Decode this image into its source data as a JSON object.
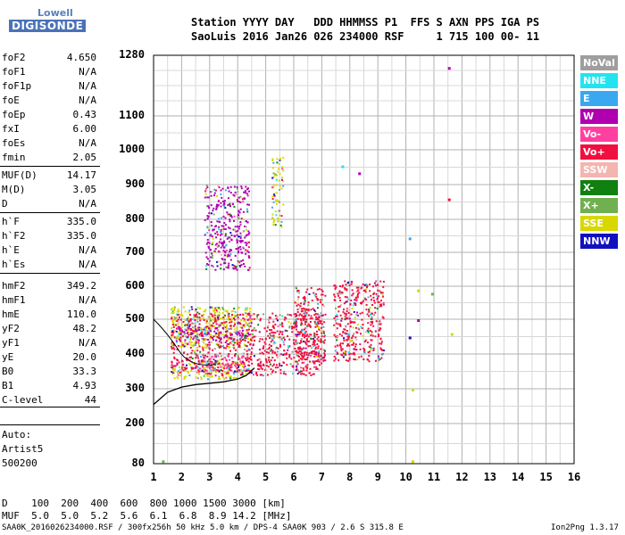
{
  "logo": {
    "line1": "Lowell",
    "line2": "DIGISONDE"
  },
  "header": {
    "line1": "Station YYYY DAY   DDD HHMMSS P1  FFS S AXN PPS IGA PS",
    "line2": "SaoLuis 2016 Jan26 026 234000 RSF     1 715 100 00- 11"
  },
  "params": [
    {
      "name": "foF2",
      "value": "4.650"
    },
    {
      "name": "foF1",
      "value": "N/A"
    },
    {
      "name": "foF1p",
      "value": "N/A"
    },
    {
      "name": "foE",
      "value": "N/A"
    },
    {
      "name": "foEp",
      "value": "0.43"
    },
    {
      "name": "fxI",
      "value": "6.00"
    },
    {
      "name": "foEs",
      "value": "N/A"
    },
    {
      "name": "fmin",
      "value": "2.05"
    },
    {
      "name": "MUF(D)",
      "value": "14.17"
    },
    {
      "name": "M(D)",
      "value": "3.05"
    },
    {
      "name": "D",
      "value": "N/A"
    },
    {
      "name": "h`F",
      "value": "335.0"
    },
    {
      "name": "h`F2",
      "value": "335.0"
    },
    {
      "name": "h`E",
      "value": "N/A"
    },
    {
      "name": "h`Es",
      "value": "N/A"
    },
    {
      "name": "hmF2",
      "value": "349.2"
    },
    {
      "name": "hmF1",
      "value": "N/A"
    },
    {
      "name": "hmE",
      "value": "110.0"
    },
    {
      "name": "yF2",
      "value": "48.2"
    },
    {
      "name": "yF1",
      "value": "N/A"
    },
    {
      "name": "yE",
      "value": "20.0"
    },
    {
      "name": "B0",
      "value": "33.3"
    },
    {
      "name": "B1",
      "value": "4.93"
    },
    {
      "name": "C-level",
      "value": "44"
    }
  ],
  "auto": {
    "line1": "Auto:",
    "line2": "Artist5",
    "line3": "500200"
  },
  "legend": [
    {
      "label": "NoVal",
      "color": "#9e9e9e"
    },
    {
      "label": "NNE",
      "color": "#22e4f0"
    },
    {
      "label": "E",
      "color": "#3aa8f0"
    },
    {
      "label": "W",
      "color": "#b000b0"
    },
    {
      "label": "Vo-",
      "color": "#ff40a0"
    },
    {
      "label": "Vo+",
      "color": "#f01040"
    },
    {
      "label": "SSW",
      "color": "#f4b4b0"
    },
    {
      "label": "X-",
      "color": "#108010"
    },
    {
      "label": "X+",
      "color": "#70b050"
    },
    {
      "label": "SSE",
      "color": "#d8d800"
    },
    {
      "label": "NNW",
      "color": "#1010c0"
    }
  ],
  "footer": {
    "line1": "D    100  200  400  600  800 1000 1500 3000 [km]",
    "line2": "MUF  5.0  5.0  5.2  5.6  6.1  6.8  8.9 14.2 [MHz]",
    "line3": "SAA0K_2016026234000.RSF / 300fx256h 50 kHz 5.0 km / DPS-4 SAA0K 903 / 2.6 S 315.8 E",
    "version": "Ion2Png 1.3.17"
  },
  "chart_data": {
    "type": "scatter",
    "title": "",
    "xlabel": "",
    "ylabel": "",
    "xlim": [
      1,
      16
    ],
    "ylim": [
      80,
      1280
    ],
    "x_ticks": [
      "1",
      "2",
      "3",
      "4",
      "5",
      "6",
      "7",
      "8",
      "9",
      "10",
      "11",
      "12",
      "13",
      "14",
      "15",
      "16"
    ],
    "y_ticks": [
      "80",
      "200",
      "300",
      "400",
      "500",
      "600",
      "700",
      "800",
      "900",
      "1000",
      "1100",
      "1280"
    ],
    "y_tick_values": [
      80,
      200,
      300,
      400,
      500,
      600,
      700,
      800,
      900,
      1000,
      1100,
      1280
    ],
    "y_scale": "nonlinear",
    "grid": true,
    "trace_description": "F-region echo clusters (MHz vs km)",
    "clusters": [
      {
        "x": [
          1.6,
          4.5
        ],
        "y": [
          420,
          540
        ],
        "color": "#d8d800"
      },
      {
        "x": [
          1.6,
          4.3
        ],
        "y": [
          330,
          380
        ],
        "color": "#d8d800"
      },
      {
        "x": [
          1.6,
          7.0
        ],
        "y": [
          340,
          520
        ],
        "color": "#f01040"
      },
      {
        "x": [
          1.7,
          4.4
        ],
        "y": [
          440,
          480
        ],
        "color": "#b000b0"
      },
      {
        "x": [
          2.5,
          4.2
        ],
        "y": [
          350,
          400
        ],
        "color": "#ff40a0"
      },
      {
        "x": [
          6.0,
          7.1
        ],
        "y": [
          380,
          600
        ],
        "color": "#f01040"
      },
      {
        "x": [
          7.4,
          9.2
        ],
        "y": [
          380,
          620
        ],
        "color": "#f01040"
      },
      {
        "x": [
          2.8,
          4.4
        ],
        "y": [
          650,
          900
        ],
        "color": "#b000b0"
      },
      {
        "x": [
          5.2,
          5.6
        ],
        "y": [
          780,
          980
        ],
        "color": "#d8d800"
      }
    ],
    "profile_curve": {
      "x": [
        1.0,
        1.5,
        2.0,
        2.5,
        3.0,
        3.5,
        4.0,
        4.3,
        4.6
      ],
      "y": [
        255,
        290,
        305,
        312,
        316,
        320,
        328,
        338,
        360
      ],
      "color": "#000000"
    },
    "stray_points": [
      {
        "x": 11.5,
        "y": 1245,
        "color": "#b000b0"
      },
      {
        "x": 7.7,
        "y": 955,
        "color": "#22e4f0"
      },
      {
        "x": 8.3,
        "y": 935,
        "color": "#b000b0"
      },
      {
        "x": 11.5,
        "y": 860,
        "color": "#f01040"
      },
      {
        "x": 10.1,
        "y": 745,
        "color": "#3aa8f0"
      },
      {
        "x": 10.4,
        "y": 590,
        "color": "#d8d800"
      },
      {
        "x": 10.9,
        "y": 580,
        "color": "#70b050"
      },
      {
        "x": 10.4,
        "y": 500,
        "color": "#b000b0"
      },
      {
        "x": 10.1,
        "y": 450,
        "color": "#1010c0"
      },
      {
        "x": 10.2,
        "y": 300,
        "color": "#d8d800"
      },
      {
        "x": 10.2,
        "y": 90,
        "color": "#d8d800"
      },
      {
        "x": 1.3,
        "y": 90,
        "color": "#70b050"
      },
      {
        "x": 11.6,
        "y": 460,
        "color": "#d8d800"
      }
    ]
  }
}
